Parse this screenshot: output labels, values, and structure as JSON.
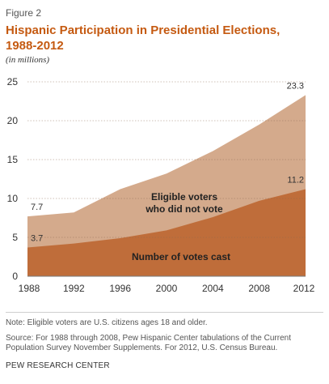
{
  "figure_label": "Figure 2",
  "title_line1": "Hispanic Participation in Presidential Elections,",
  "title_line2": "1988-2012",
  "subtitle": "(in millions)",
  "note": "Note: Eligible voters are U.S. citizens ages 18 and older.",
  "source_line1": "Source:  For 1988 through 2008, Pew Hispanic Center tabulations of the Current",
  "source_line2": "Population Survey November Supplements. For 2012,  U.S. Census Bureau.",
  "organization": "PEW RESEARCH CENTER",
  "colors": {
    "title": "#c55a11",
    "eligible_area": "#d4aa8c",
    "votes_area": "#bf6d3a",
    "grid": "#8c6a52"
  },
  "chart_data": {
    "type": "area",
    "x": [
      1988,
      1992,
      1996,
      2000,
      2004,
      2008,
      2012
    ],
    "xticks": [
      "1988",
      "1992",
      "1996",
      "2000",
      "2004",
      "2008",
      "2012"
    ],
    "yticks": [
      "0",
      "5",
      "10",
      "15",
      "20",
      "25"
    ],
    "ylim": [
      0,
      25
    ],
    "grid": true,
    "series": [
      {
        "name": "Eligible voters who did not vote",
        "total_values": [
          7.7,
          8.2,
          11.2,
          13.2,
          16.1,
          19.5,
          23.3
        ]
      },
      {
        "name": "Number of votes cast",
        "values": [
          3.7,
          4.2,
          4.9,
          5.9,
          7.6,
          9.7,
          11.2
        ]
      }
    ],
    "annotations": [
      {
        "x": 1988,
        "text": "7.7"
      },
      {
        "x": 1988,
        "text": "3.7"
      },
      {
        "x": 2012,
        "text": "23.3"
      },
      {
        "x": 2012,
        "text": "11.2"
      }
    ],
    "area_label_eligible_line1": "Eligible voters",
    "area_label_eligible_line2": "who did not vote",
    "area_label_votes": "Number of votes cast"
  }
}
